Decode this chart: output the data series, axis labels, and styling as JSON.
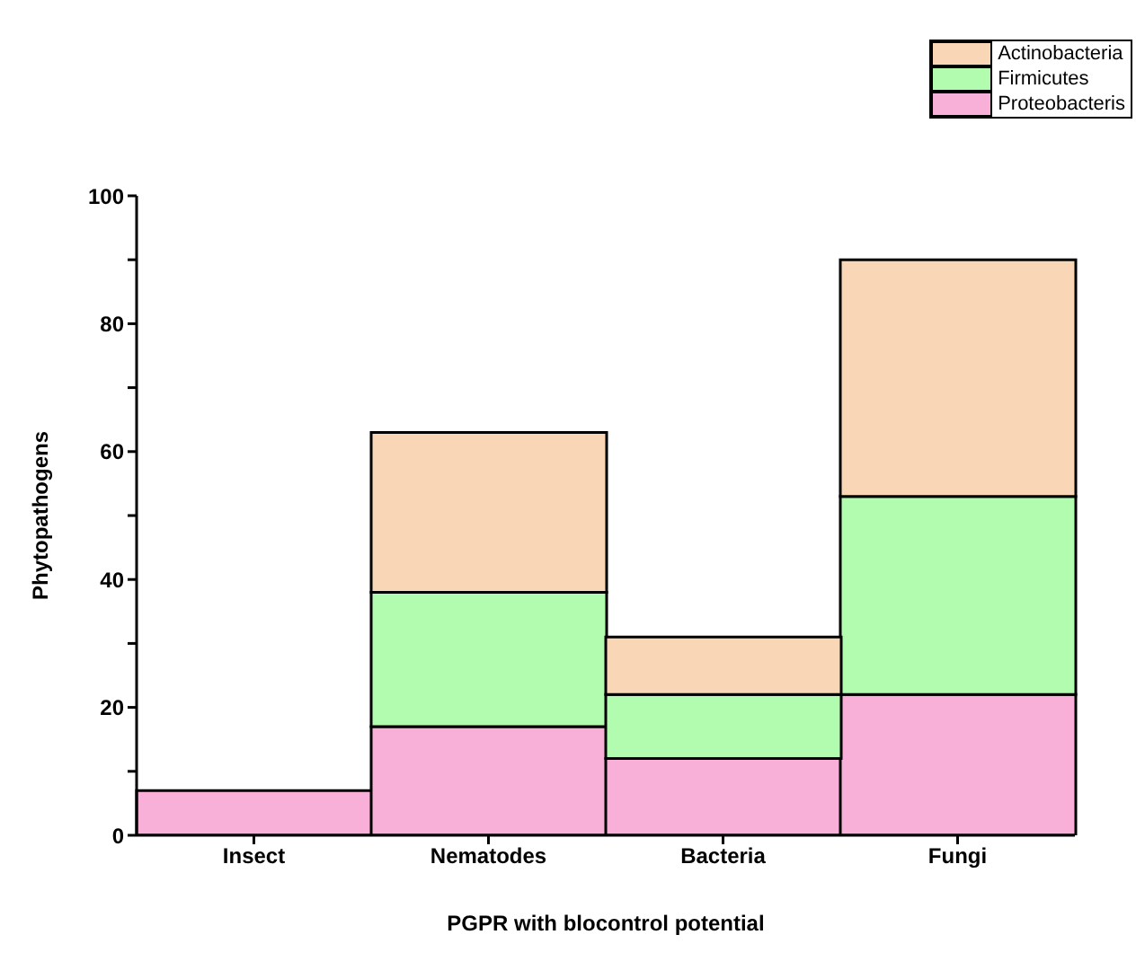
{
  "chart_data": {
    "type": "bar",
    "stacked": true,
    "xlabel": "PGPR with blocontrol potential",
    "ylabel": "Phytopathogens",
    "categories": [
      "Insect",
      "Nematodes",
      "Bacteria",
      "Fungi"
    ],
    "series": [
      {
        "name": "Proteobacteris",
        "color": "#f9b0d8",
        "values": [
          7,
          17,
          12,
          22
        ]
      },
      {
        "name": "Firmicutes",
        "color": "#b2fcb0",
        "values": [
          0,
          21,
          10,
          31
        ]
      },
      {
        "name": "Actinobacteria",
        "color": "#f9d6b6",
        "values": [
          0,
          25,
          9,
          37
        ]
      }
    ],
    "ylim": [
      0,
      100
    ],
    "yticks": [
      0,
      {
        "value": 10,
        "label": null
      },
      20,
      {
        "value": 30,
        "label": null
      },
      40,
      {
        "value": 50,
        "label": null
      },
      60,
      {
        "value": 70,
        "label": null
      },
      80,
      {
        "value": 90,
        "label": null
      },
      100
    ],
    "legend": "top right",
    "grid": false
  }
}
